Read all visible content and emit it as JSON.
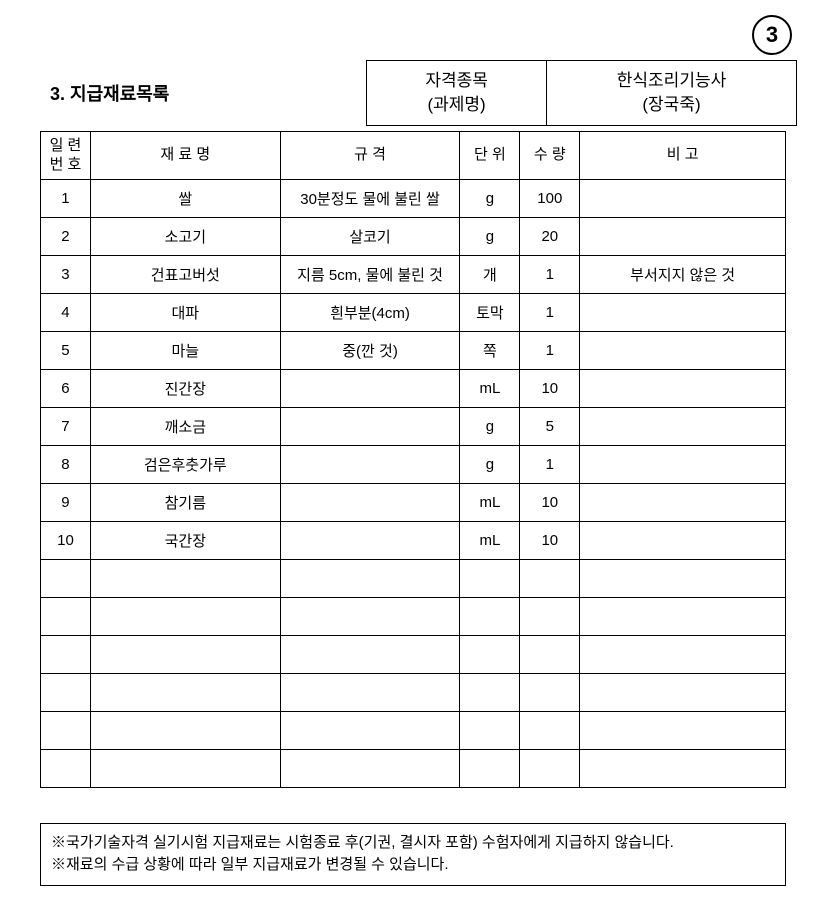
{
  "page_number": "3",
  "title": "3.  지급재료목록",
  "header": {
    "box1_line1": "자격종목",
    "box1_line2": "(과제명)",
    "box2_line1": "한식조리기능사",
    "box2_line2": "(장국죽)"
  },
  "table": {
    "headers": {
      "no_line1": "일 련",
      "no_line2": "번 호",
      "name": "재    료    명",
      "spec": "규          격",
      "unit": "단 위",
      "qty": "수 량",
      "note": "비       고"
    },
    "rows": [
      {
        "no": "1",
        "name": "쌀",
        "spec": "30분정도 물에 불린 쌀",
        "unit": "g",
        "qty": "100",
        "note": ""
      },
      {
        "no": "2",
        "name": "소고기",
        "spec": "살코기",
        "unit": "g",
        "qty": "20",
        "note": ""
      },
      {
        "no": "3",
        "name": "건표고버섯",
        "spec": "지름 5cm, 물에 불린 것",
        "unit": "개",
        "qty": "1",
        "note": "부서지지   않은 것"
      },
      {
        "no": "4",
        "name": "대파",
        "spec": "흰부분(4cm)",
        "unit": "토막",
        "qty": "1",
        "note": ""
      },
      {
        "no": "5",
        "name": "마늘",
        "spec": "중(깐 것)",
        "unit": "쪽",
        "qty": "1",
        "note": ""
      },
      {
        "no": "6",
        "name": "진간장",
        "spec": "",
        "unit": "mL",
        "qty": "10",
        "note": ""
      },
      {
        "no": "7",
        "name": "깨소금",
        "spec": "",
        "unit": "g",
        "qty": "5",
        "note": ""
      },
      {
        "no": "8",
        "name": "검은후춧가루",
        "spec": "",
        "unit": "g",
        "qty": "1",
        "note": ""
      },
      {
        "no": "9",
        "name": "참기름",
        "spec": "",
        "unit": "mL",
        "qty": "10",
        "note": ""
      },
      {
        "no": "10",
        "name": "국간장",
        "spec": "",
        "unit": "mL",
        "qty": "10",
        "note": ""
      },
      {
        "no": "",
        "name": "",
        "spec": "",
        "unit": "",
        "qty": "",
        "note": ""
      },
      {
        "no": "",
        "name": "",
        "spec": "",
        "unit": "",
        "qty": "",
        "note": ""
      },
      {
        "no": "",
        "name": "",
        "spec": "",
        "unit": "",
        "qty": "",
        "note": ""
      },
      {
        "no": "",
        "name": "",
        "spec": "",
        "unit": "",
        "qty": "",
        "note": ""
      },
      {
        "no": "",
        "name": "",
        "spec": "",
        "unit": "",
        "qty": "",
        "note": ""
      },
      {
        "no": "",
        "name": "",
        "spec": "",
        "unit": "",
        "qty": "",
        "note": ""
      }
    ]
  },
  "footer": {
    "line1": "※국가기술자격 실기시험 지급재료는 시험종료 후(기권, 결시자 포함) 수험자에게 지급하지 않습니다.",
    "line2": "※재료의 수급 상황에 따라 일부 지급재료가 변경될 수 있습니다."
  }
}
